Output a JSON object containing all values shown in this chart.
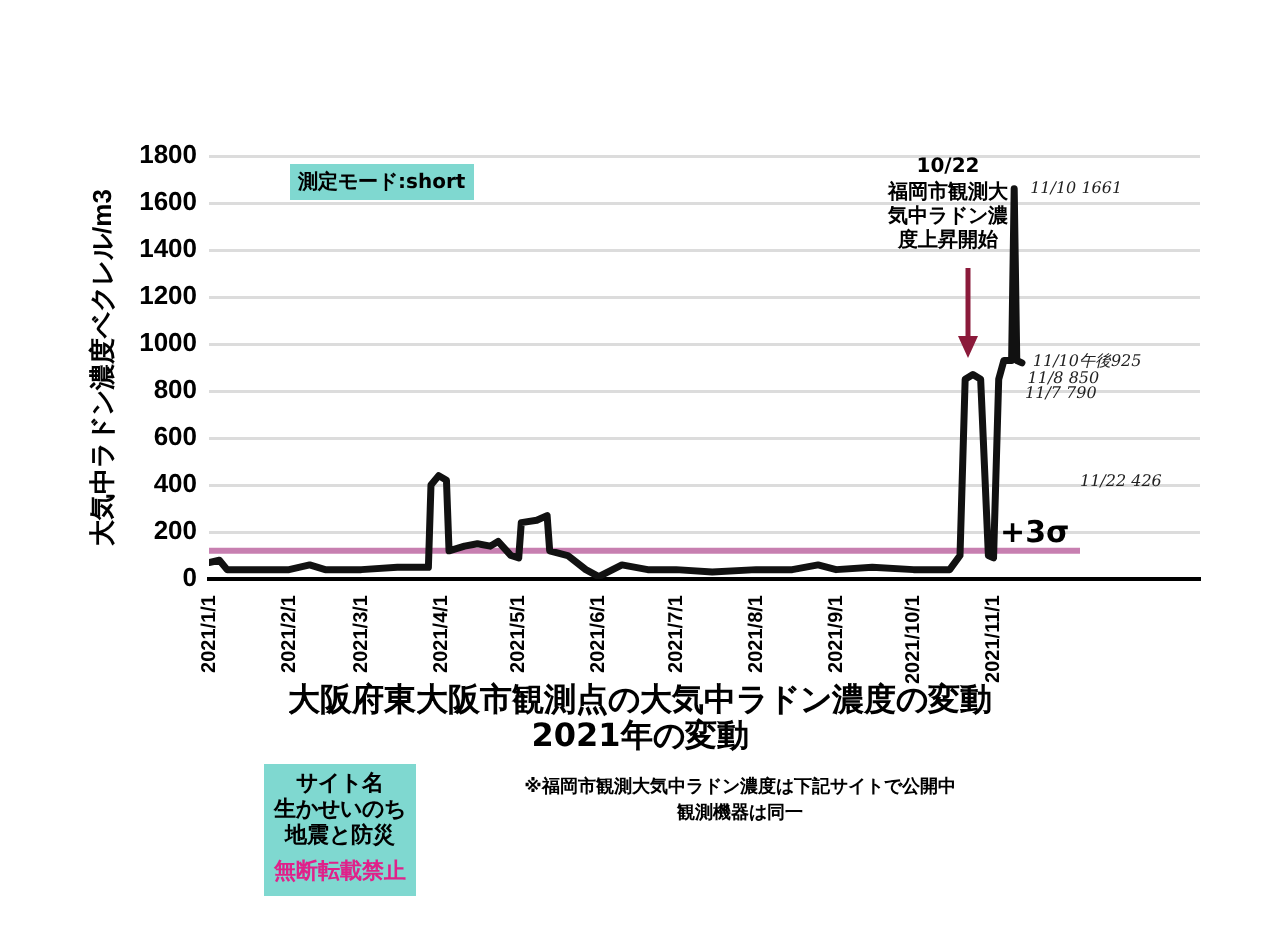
{
  "chart_data": {
    "type": "line",
    "title": "大阪府東大阪市観測点の大気中ラドン濃度の変動",
    "subtitle": "2021年の変動",
    "ylabel": "大気中ラドン濃度ベクレル/m3",
    "x": [
      "2021-01-01",
      "2021-01-05",
      "2021-01-08",
      "2021-01-20",
      "2021-02-01",
      "2021-02-09",
      "2021-02-15",
      "2021-03-01",
      "2021-03-15",
      "2021-03-27",
      "2021-03-28",
      "2021-03-31",
      "2021-04-03",
      "2021-04-04",
      "2021-04-10",
      "2021-04-15",
      "2021-04-20",
      "2021-04-23",
      "2021-04-28",
      "2021-05-01",
      "2021-05-02",
      "2021-05-08",
      "2021-05-12",
      "2021-05-13",
      "2021-05-20",
      "2021-05-27",
      "2021-06-01",
      "2021-06-10",
      "2021-06-20",
      "2021-07-01",
      "2021-07-15",
      "2021-08-01",
      "2021-08-15",
      "2021-08-25",
      "2021-09-01",
      "2021-09-15",
      "2021-10-01",
      "2021-10-15",
      "2021-10-19",
      "2021-10-21",
      "2021-10-24",
      "2021-10-27",
      "2021-10-30",
      "2021-11-01",
      "2021-11-03",
      "2021-11-05",
      "2021-11-08",
      "2021-11-09",
      "2021-11-10",
      "2021-11-12"
    ],
    "series": [
      {
        "color": "#111111",
        "values": [
          70,
          80,
          40,
          40,
          40,
          60,
          40,
          40,
          50,
          50,
          400,
          440,
          420,
          120,
          140,
          150,
          140,
          160,
          100,
          90,
          240,
          250,
          270,
          120,
          100,
          40,
          10,
          60,
          40,
          40,
          30,
          40,
          40,
          60,
          40,
          50,
          40,
          40,
          100,
          850,
          870,
          850,
          100,
          90,
          850,
          930,
          930,
          1661,
          930,
          920
        ]
      }
    ],
    "xlim": [
      "2021-01-01",
      "2022-01-20"
    ],
    "xticks": [
      {
        "value": "2021-01-01",
        "label": "2021/1/1"
      },
      {
        "value": "2021-02-01",
        "label": "2021/2/1"
      },
      {
        "value": "2021-03-01",
        "label": "2021/3/1"
      },
      {
        "value": "2021-04-01",
        "label": "2021/4/1"
      },
      {
        "value": "2021-05-01",
        "label": "2021/5/1"
      },
      {
        "value": "2021-06-01",
        "label": "2021/6/1"
      },
      {
        "value": "2021-07-01",
        "label": "2021/7/1"
      },
      {
        "value": "2021-08-01",
        "label": "2021/8/1"
      },
      {
        "value": "2021-09-01",
        "label": "2021/9/1"
      },
      {
        "value": "2021-10-01",
        "label": "2021/10/1"
      },
      {
        "value": "2021-11-01",
        "label": "2021/11/1"
      }
    ],
    "ylim": [
      0,
      1800
    ],
    "yticks": [
      0,
      200,
      400,
      600,
      800,
      1000,
      1200,
      1400,
      1600,
      1800
    ],
    "grid": "y",
    "legend": false,
    "marker": "none",
    "line_style": "solid",
    "ref_lines": [
      {
        "axis": "y",
        "value": 120,
        "label": "+3σ",
        "color": "#c77fb0"
      }
    ],
    "annotations": [
      {
        "text": "11/10 1661",
        "x": "2021-11-09",
        "y": 1661
      },
      {
        "text": "11/10午後925",
        "x": "2021-11-10",
        "y": 925
      },
      {
        "text": "11/8 850",
        "x": "2021-11-08",
        "y": 850
      },
      {
        "text": "11/7 790",
        "x": "2021-11-07",
        "y": 790
      },
      "測定モード:short",
      "10/22",
      "福岡市観測大気中ラドン濃度上昇開始",
      "11/22 426",
      "サイト名",
      "生かせいのち地震と防災",
      "無断転載禁止",
      "※福岡市観測大気中ラドン濃度は下記サイトで公開中観測機器は同一"
    ]
  }
}
